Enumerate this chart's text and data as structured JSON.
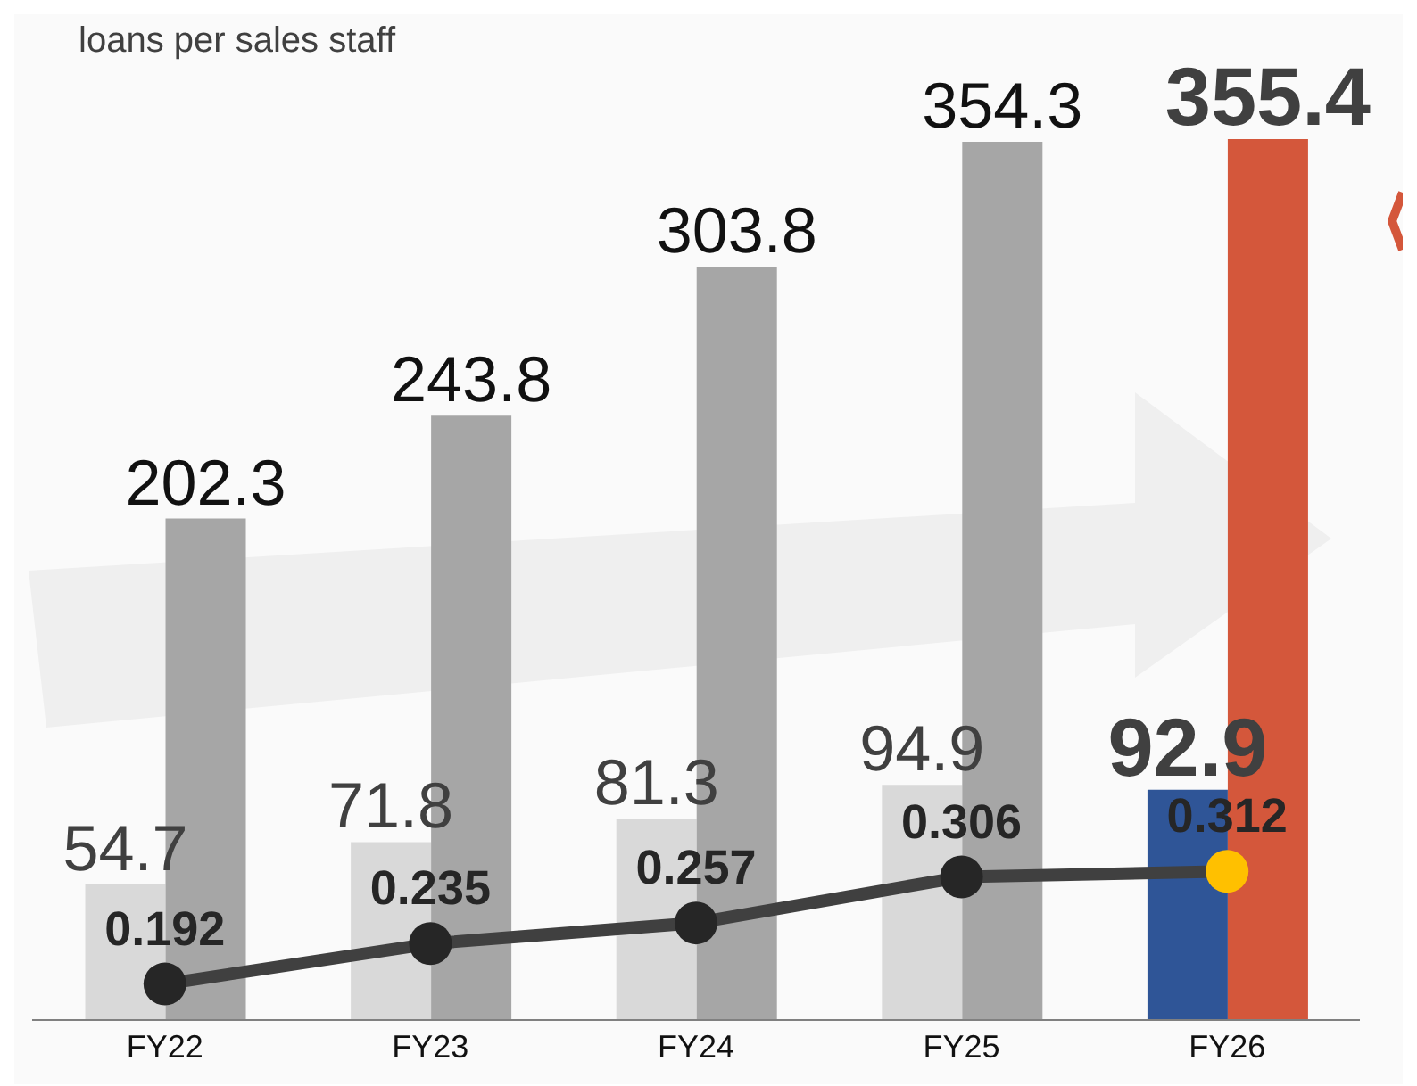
{
  "chart_data": {
    "type": "bar",
    "annotations": [
      "loans per sales staff"
    ],
    "categories": [
      "FY22",
      "FY23",
      "FY24",
      "FY25",
      "FY26"
    ],
    "data_labels": true,
    "grid": false,
    "series": [
      {
        "color": "#d9d9d9",
        "colors": [
          "#d9d9d9",
          "#d9d9d9",
          "#d9d9d9",
          "#d9d9d9",
          "#2f5597"
        ],
        "values": [
          54.7,
          71.8,
          81.3,
          94.9,
          92.9
        ]
      },
      {
        "color": "#a6a6a6",
        "colors": [
          "#a6a6a6",
          "#a6a6a6",
          "#a6a6a6",
          "#a6a6a6",
          "#d4573b"
        ],
        "values": [
          202.3,
          243.8,
          303.8,
          354.3,
          355.4
        ]
      },
      {
        "type": "line",
        "axis": "y2",
        "color": "#404040",
        "colors": [
          "#262626",
          "#262626",
          "#262626",
          "#262626",
          "#ffc000"
        ],
        "marker": "circle",
        "line_style": "solid",
        "values": [
          0.192,
          0.235,
          0.257,
          0.306,
          0.312
        ]
      }
    ]
  }
}
